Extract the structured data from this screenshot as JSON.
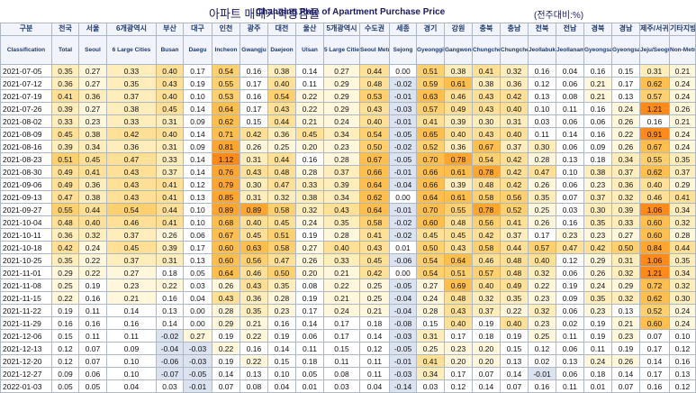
{
  "title": {
    "korean": "아파트 매매가격증감률",
    "english": "Changing Rate of Apartment Purchase Price",
    "unit": "(전주대비:%)"
  },
  "columns": [
    {
      "ko": "구분",
      "en": "Classification"
    },
    {
      "ko": "전국",
      "en": "Total"
    },
    {
      "ko": "서울",
      "en": "Seoul"
    },
    {
      "ko": "6개광역시",
      "en": "6 Large Cities"
    },
    {
      "ko": "부산",
      "en": "Busan"
    },
    {
      "ko": "대구",
      "en": "Daegu"
    },
    {
      "ko": "인천",
      "en": "Incheon"
    },
    {
      "ko": "광주",
      "en": "Gwangju"
    },
    {
      "ko": "대전",
      "en": "Daejeon"
    },
    {
      "ko": "울산",
      "en": "Ulsan"
    },
    {
      "ko": "5개광역시",
      "en": "5 Large Cities"
    },
    {
      "ko": "수도권",
      "en": "Seoul Metropolitan"
    },
    {
      "ko": "세종",
      "en": "Sejong"
    },
    {
      "ko": "경기",
      "en": "Gyeonggi-do"
    },
    {
      "ko": "강원",
      "en": "Gangwon-do"
    },
    {
      "ko": "충북",
      "en": "Chungcheongbuk-do"
    },
    {
      "ko": "충남",
      "en": "Chungcheongnam-do"
    },
    {
      "ko": "전북",
      "en": "Jeollabuk-do"
    },
    {
      "ko": "전남",
      "en": "Jeollanam-do"
    },
    {
      "ko": "경북",
      "en": "Gyeongsangbuk-do"
    },
    {
      "ko": "경남",
      "en": "Gyeongsangnam-do"
    },
    {
      "ko": "제주/서귀포",
      "en": "Jeju/Seogwipo"
    },
    {
      "ko": "기타지방",
      "en": "Non-Metropolitan Area"
    }
  ],
  "rows": [
    {
      "date": "2021-07-05",
      "values": [
        "0.35",
        "0.27",
        "0.33",
        "0.40",
        "0.17",
        "0.54",
        "0.16",
        "0.38",
        "0.14",
        "0.27",
        "0.44",
        "0.00",
        "0.51",
        "0.38",
        "0.41",
        "0.32",
        "0.16",
        "0.04",
        "0.16",
        "0.15",
        "0.31",
        "0.21"
      ]
    },
    {
      "date": "2021-07-12",
      "values": [
        "0.36",
        "0.27",
        "0.35",
        "0.43",
        "0.19",
        "0.55",
        "0.17",
        "0.40",
        "0.11",
        "0.29",
        "0.48",
        "-0.02",
        "0.59",
        "0.61",
        "0.38",
        "0.36",
        "0.12",
        "0.06",
        "0.21",
        "0.17",
        "0.62",
        "0.24"
      ]
    },
    {
      "date": "2021-07-19",
      "values": [
        "0.41",
        "0.36",
        "0.37",
        "0.40",
        "0.10",
        "0.53",
        "0.16",
        "0.54",
        "0.22",
        "0.29",
        "0.53",
        "-0.01",
        "0.63",
        "0.46",
        "0.43",
        "0.42",
        "0.13",
        "0.08",
        "0.21",
        "0.13",
        "0.57",
        "0.24"
      ]
    },
    {
      "date": "2021-07-26",
      "values": [
        "0.39",
        "0.27",
        "0.38",
        "0.45",
        "0.14",
        "0.64",
        "0.17",
        "0.43",
        "0.22",
        "0.29",
        "0.43",
        "-0.03",
        "0.57",
        "0.49",
        "0.43",
        "0.40",
        "0.10",
        "0.11",
        "0.16",
        "0.24",
        "1.21",
        "0.26"
      ]
    },
    {
      "date": "2021-08-02",
      "values": [
        "0.33",
        "0.23",
        "0.33",
        "0.31",
        "0.09",
        "0.62",
        "0.15",
        "0.44",
        "0.21",
        "0.24",
        "0.40",
        "-0.01",
        "0.41",
        "0.39",
        "0.30",
        "0.31",
        "0.03",
        "0.06",
        "0.06",
        "0.26",
        "0.16",
        "0.21"
      ]
    },
    {
      "date": "2021-08-09",
      "values": [
        "0.45",
        "0.38",
        "0.42",
        "0.40",
        "0.14",
        "0.71",
        "0.42",
        "0.36",
        "0.45",
        "0.34",
        "0.54",
        "-0.05",
        "0.65",
        "0.40",
        "0.43",
        "0.40",
        "0.11",
        "0.14",
        "0.16",
        "0.22",
        "0.91",
        "0.24"
      ]
    },
    {
      "date": "2021-08-16",
      "values": [
        "0.39",
        "0.34",
        "0.36",
        "0.31",
        "0.09",
        "0.81",
        "0.26",
        "0.25",
        "0.20",
        "0.23",
        "0.50",
        "-0.02",
        "0.52",
        "0.36",
        "0.67",
        "0.37",
        "0.30",
        "0.06",
        "0.09",
        "0.26",
        "0.67",
        "0.24"
      ]
    },
    {
      "date": "2021-08-23",
      "values": [
        "0.51",
        "0.45",
        "0.47",
        "0.33",
        "0.14",
        "1.12",
        "0.31",
        "0.44",
        "0.16",
        "0.28",
        "0.67",
        "-0.05",
        "0.70",
        "0.78",
        "0.54",
        "0.42",
        "0.28",
        "0.13",
        "0.18",
        "0.34",
        "0.55",
        "0.35"
      ]
    },
    {
      "date": "2021-08-30",
      "values": [
        "0.49",
        "0.41",
        "0.43",
        "0.37",
        "0.14",
        "0.76",
        "0.43",
        "0.48",
        "0.28",
        "0.37",
        "0.66",
        "-0.01",
        "0.66",
        "0.61",
        "0.78",
        "0.42",
        "0.47",
        "0.10",
        "0.38",
        "0.37",
        "0.62",
        "0.37"
      ]
    },
    {
      "date": "2021-09-06",
      "values": [
        "0.49",
        "0.36",
        "0.43",
        "0.41",
        "0.12",
        "0.79",
        "0.30",
        "0.47",
        "0.33",
        "0.39",
        "0.64",
        "-0.04",
        "0.66",
        "0.39",
        "0.48",
        "0.42",
        "0.26",
        "0.06",
        "0.23",
        "0.36",
        "0.40",
        "0.29"
      ]
    },
    {
      "date": "2021-09-13",
      "values": [
        "0.47",
        "0.38",
        "0.43",
        "0.41",
        "0.13",
        "0.85",
        "0.31",
        "0.32",
        "0.38",
        "0.34",
        "0.62",
        "0.00",
        "0.64",
        "0.61",
        "0.58",
        "0.56",
        "0.35",
        "0.07",
        "0.37",
        "0.32",
        "0.46",
        "0.41"
      ]
    },
    {
      "date": "2021-09-27",
      "values": [
        "0.55",
        "0.44",
        "0.54",
        "0.44",
        "0.10",
        "0.89",
        "0.89",
        "0.58",
        "0.32",
        "0.43",
        "0.64",
        "-0.01",
        "0.70",
        "0.55",
        "0.78",
        "0.52",
        "0.25",
        "0.03",
        "0.30",
        "0.39",
        "1.06",
        "0.34"
      ]
    },
    {
      "date": "2021-10-04",
      "values": [
        "0.48",
        "0.40",
        "0.46",
        "0.41",
        "0.10",
        "0.68",
        "0.40",
        "0.45",
        "0.24",
        "0.35",
        "0.58",
        "-0.02",
        "0.60",
        "0.48",
        "0.56",
        "0.41",
        "0.26",
        "0.16",
        "0.35",
        "0.33",
        "0.60",
        "0.32"
      ]
    },
    {
      "date": "2021-10-11",
      "values": [
        "0.36",
        "0.32",
        "0.37",
        "0.26",
        "0.06",
        "0.67",
        "0.45",
        "0.51",
        "0.19",
        "0.28",
        "0.41",
        "-0.02",
        "0.45",
        "0.45",
        "0.42",
        "0.37",
        "0.17",
        "0.23",
        "0.23",
        "0.27",
        "0.60",
        "0.28"
      ]
    },
    {
      "date": "2021-10-18",
      "values": [
        "0.42",
        "0.24",
        "0.45",
        "0.39",
        "0.17",
        "0.60",
        "0.63",
        "0.58",
        "0.27",
        "0.40",
        "0.43",
        "0.01",
        "0.50",
        "0.43",
        "0.58",
        "0.44",
        "0.57",
        "0.47",
        "0.42",
        "0.50",
        "0.84",
        "0.44"
      ]
    },
    {
      "date": "2021-10-25",
      "values": [
        "0.35",
        "0.22",
        "0.37",
        "0.31",
        "0.13",
        "0.60",
        "0.56",
        "0.47",
        "0.26",
        "0.33",
        "0.45",
        "-0.06",
        "0.54",
        "0.64",
        "0.46",
        "0.48",
        "0.40",
        "0.12",
        "0.29",
        "0.31",
        "1.06",
        "0.35"
      ]
    },
    {
      "date": "2021-11-01",
      "values": [
        "0.29",
        "0.22",
        "0.27",
        "0.18",
        "0.05",
        "0.64",
        "0.46",
        "0.50",
        "0.20",
        "0.21",
        "0.42",
        "0.00",
        "0.54",
        "0.51",
        "0.57",
        "0.48",
        "0.32",
        "0.06",
        "0.26",
        "0.32",
        "1.21",
        "0.34"
      ]
    },
    {
      "date": "2021-11-08",
      "values": [
        "0.25",
        "0.19",
        "0.23",
        "0.22",
        "0.03",
        "0.26",
        "0.43",
        "0.35",
        "0.08",
        "0.22",
        "0.25",
        "-0.05",
        "0.27",
        "0.69",
        "0.40",
        "0.49",
        "0.22",
        "0.19",
        "0.24",
        "0.29",
        "0.72",
        "0.32"
      ]
    },
    {
      "date": "2021-11-15",
      "values": [
        "0.22",
        "0.16",
        "0.21",
        "0.16",
        "0.04",
        "0.43",
        "0.36",
        "0.28",
        "0.19",
        "0.21",
        "0.25",
        "-0.04",
        "0.24",
        "0.48",
        "0.32",
        "0.35",
        "0.23",
        "0.09",
        "0.35",
        "0.32",
        "0.62",
        "0.30"
      ]
    },
    {
      "date": "2021-11-22",
      "values": [
        "0.19",
        "0.11",
        "0.14",
        "0.13",
        "0.00",
        "0.28",
        "0.35",
        "0.23",
        "0.17",
        "0.24",
        "0.21",
        "-0.04",
        "0.28",
        "0.43",
        "0.37",
        "0.22",
        "0.32",
        "0.06",
        "0.23",
        "0.13",
        "0.52",
        "0.24"
      ]
    },
    {
      "date": "2021-11-29",
      "values": [
        "0.16",
        "0.16",
        "0.16",
        "0.14",
        "0.00",
        "0.29",
        "0.21",
        "0.16",
        "0.14",
        "0.17",
        "0.18",
        "-0.08",
        "0.15",
        "0.40",
        "0.19",
        "0.40",
        "0.23",
        "0.02",
        "0.19",
        "0.21",
        "0.60",
        "0.24"
      ]
    },
    {
      "date": "2021-12-06",
      "values": [
        "0.15",
        "0.11",
        "0.11",
        "-0.02",
        "0.27",
        "0.19",
        "0.22",
        "0.19",
        "0.06",
        "0.17",
        "0.14",
        "-0.03",
        "0.31",
        "0.17",
        "0.18",
        "0.19",
        "0.25",
        "0.11",
        "0.19",
        "0.23",
        "0.07",
        "0.10"
      ]
    },
    {
      "date": "2021-12-13",
      "values": [
        "0.12",
        "0.07",
        "0.09",
        "-0.04",
        "-0.03",
        "0.22",
        "0.16",
        "0.14",
        "0.11",
        "0.15",
        "0.12",
        "-0.05",
        "0.25",
        "0.23",
        "0.20",
        "0.15",
        "0.12",
        "0.06",
        "0.11",
        "0.19",
        "0.17",
        "0.12"
      ]
    },
    {
      "date": "2021-12-20",
      "values": [
        "0.12",
        "0.07",
        "0.10",
        "-0.06",
        "-0.03",
        "0.19",
        "0.22",
        "0.15",
        "0.18",
        "0.11",
        "0.11",
        "-0.01",
        "0.41",
        "0.20",
        "0.20",
        "0.13",
        "0.02",
        "0.13",
        "0.24",
        "0.26",
        "0.14",
        "0.16"
      ]
    },
    {
      "date": "2021-12-27",
      "values": [
        "0.09",
        "0.06",
        "0.10",
        "-0.07",
        "-0.05",
        "0.14",
        "0.13",
        "0.10",
        "0.05",
        "0.08",
        "0.11",
        "-0.03",
        "0.34",
        "0.17",
        "0.07",
        "0.14",
        "-0.01",
        "0.06",
        "0.18",
        "0.14",
        "0.17",
        "0.13"
      ]
    },
    {
      "date": "2022-01-03",
      "values": [
        "0.05",
        "0.05",
        "0.04",
        "0.03",
        "-0.01",
        "0.07",
        "0.08",
        "0.04",
        "0.01",
        "0.03",
        "0.04",
        "-0.14",
        "0.03",
        "0.12",
        "0.14",
        "0.07",
        "0.16",
        "0.11",
        "0.01",
        "0.07",
        "0.16",
        "0.12"
      ]
    }
  ]
}
